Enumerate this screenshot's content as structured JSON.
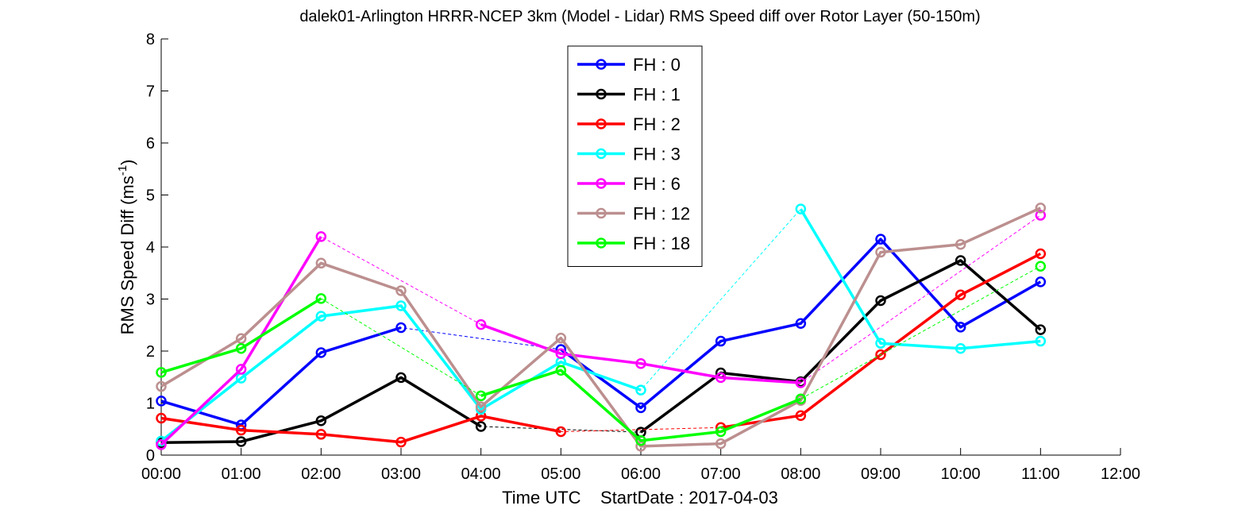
{
  "chart_data": {
    "type": "line",
    "title": "dalek01-Arlington HRRR-NCEP 3km (Model - Lidar) RMS Speed diff over Rotor Layer (50-150m)",
    "xlabel": "Time UTC    StartDate : 2017-04-03",
    "ylabel_main": "RMS Speed Diff (ms",
    "ylabel_sup": "-1",
    "ylabel_tail": ")",
    "x_ticks": [
      "00:00",
      "01:00",
      "02:00",
      "03:00",
      "04:00",
      "05:00",
      "06:00",
      "07:00",
      "08:00",
      "09:00",
      "10:00",
      "11:00",
      "12:00"
    ],
    "xlim": [
      0,
      12
    ],
    "ylim": [
      0,
      8
    ],
    "y_ticks": [
      "0",
      "1",
      "2",
      "3",
      "4",
      "5",
      "6",
      "7",
      "8"
    ],
    "grid": false,
    "legend_placement": "top-center",
    "series": [
      {
        "name": "FH : 0",
        "color": "#0000ff",
        "x": [
          0,
          1,
          2,
          3,
          4,
          5,
          6,
          7,
          8,
          9,
          10,
          11
        ],
        "values": [
          1.04,
          0.58,
          1.97,
          2.45,
          null,
          2.03,
          0.91,
          2.19,
          2.53,
          4.15,
          2.46,
          3.33
        ]
      },
      {
        "name": "FH : 1",
        "color": "#000000",
        "x": [
          0,
          1,
          2,
          3,
          4,
          5,
          6,
          7,
          8,
          9,
          10,
          11
        ],
        "values": [
          0.24,
          0.26,
          0.66,
          1.49,
          0.55,
          null,
          0.44,
          1.58,
          1.41,
          2.97,
          3.74,
          2.41
        ]
      },
      {
        "name": "FH : 2",
        "color": "#ff0000",
        "x": [
          0,
          1,
          2,
          3,
          4,
          5,
          6,
          7,
          8,
          9,
          10,
          11
        ],
        "values": [
          0.71,
          0.48,
          0.4,
          0.25,
          0.75,
          0.45,
          null,
          0.53,
          0.76,
          1.93,
          3.08,
          3.87
        ]
      },
      {
        "name": "FH : 3",
        "color": "#00ffff",
        "x": [
          0,
          1,
          2,
          3,
          4,
          5,
          6,
          7,
          8,
          9,
          10,
          11
        ],
        "values": [
          0.27,
          1.48,
          2.67,
          2.87,
          0.88,
          1.79,
          1.25,
          null,
          4.73,
          2.15,
          2.05,
          2.19
        ]
      },
      {
        "name": "FH : 6",
        "color": "#ff00ff",
        "x": [
          0,
          1,
          2,
          3,
          4,
          5,
          6,
          7,
          8,
          9,
          10,
          11
        ],
        "values": [
          0.2,
          1.65,
          4.2,
          null,
          2.51,
          1.95,
          1.76,
          1.49,
          1.39,
          null,
          null,
          4.61
        ]
      },
      {
        "name": "FH : 12",
        "color": "#bc8f8f",
        "x": [
          0,
          1,
          2,
          3,
          4,
          5,
          6,
          7,
          8,
          9,
          10,
          11
        ],
        "values": [
          1.32,
          2.24,
          3.69,
          3.16,
          0.93,
          2.25,
          0.17,
          0.22,
          1.05,
          3.9,
          4.05,
          4.75
        ]
      },
      {
        "name": "FH : 18",
        "color": "#00ff00",
        "x": [
          0,
          1,
          2,
          3,
          4,
          5,
          6,
          7,
          8,
          9,
          10,
          11
        ],
        "values": [
          1.59,
          2.05,
          3.01,
          null,
          1.14,
          1.63,
          0.28,
          0.45,
          1.08,
          null,
          null,
          3.63
        ]
      }
    ]
  }
}
